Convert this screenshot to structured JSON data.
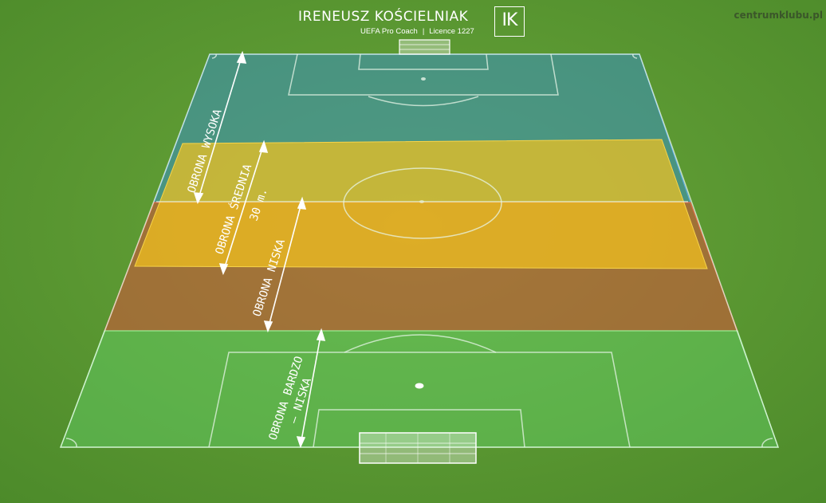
{
  "header": {
    "coach_name": "IRENEUSZ KOŚCIELNIAK",
    "coach_title": "UEFA Pro Coach",
    "separator": "|",
    "licence": "Licence 1227",
    "logo_text": "IK"
  },
  "watermark": "centrumklubu.pl",
  "zones": [
    {
      "label_lines": [
        "OBRONA WYSOKA"
      ],
      "color": "#3a8fc0"
    },
    {
      "label_lines": [
        "OBRONA ŚREDNIA",
        "30 m."
      ],
      "color": "#f2c21e"
    },
    {
      "label_lines": [
        "OBRONA NISKA"
      ],
      "color": "#c8583a"
    },
    {
      "label_lines": [
        "OBRONA BARDZO",
        "– NISKA"
      ],
      "color": "#63d36a"
    }
  ],
  "colors": {
    "grass": "#5c9732",
    "lines": "#e8f5e8"
  }
}
